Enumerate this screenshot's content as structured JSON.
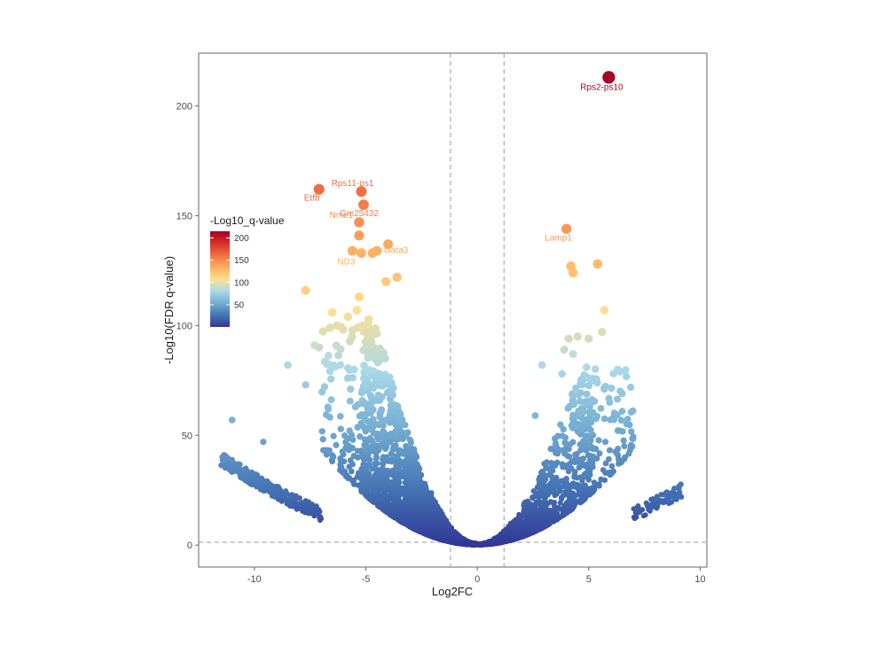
{
  "chart_data": {
    "type": "scatter",
    "title": "",
    "xlabel": "Log2FC",
    "ylabel": "-Log10(FDR q-value)",
    "xlim": [
      -12.5,
      10.3
    ],
    "ylim": [
      -10,
      224
    ],
    "x_ticks": [
      -10,
      -5,
      0,
      5,
      10
    ],
    "y_ticks": [
      0,
      50,
      100,
      150,
      200
    ],
    "grid": false,
    "thresholds": {
      "log2fc": [
        -1.2,
        1.2
      ],
      "neg_log10_q": 1.3
    },
    "colors": {
      "scale": [
        "#313695",
        "#4575b4",
        "#74add1",
        "#abd9e9",
        "#fee090",
        "#fdae61",
        "#f46d43",
        "#d73027",
        "#a50026"
      ],
      "threshold_line": "#999999",
      "axis": "#666666"
    },
    "legend": {
      "title": "-Log10_q-value",
      "placement": "left",
      "ticks": [
        50,
        100,
        150,
        200
      ],
      "range": [
        0,
        215
      ]
    },
    "labeled_points": [
      {
        "gene": "Rps2-ps10",
        "x": 5.9,
        "y": 213
      },
      {
        "gene": "Rps11-ps1",
        "x": -5.2,
        "y": 161
      },
      {
        "gene": "Etfb",
        "x": -7.1,
        "y": 162
      },
      {
        "gene": "Gm25432",
        "x": -5.1,
        "y": 155
      },
      {
        "gene": "Nme1",
        "x": -5.3,
        "y": 147
      },
      {
        "gene": "Lamp1",
        "x": 4.0,
        "y": 144
      },
      {
        "gene": "ND3",
        "x": -5.2,
        "y": 133
      },
      {
        "gene": "Gata3",
        "x": -4.0,
        "y": 137
      }
    ],
    "highlight_points": [
      {
        "x": -5.3,
        "y": 141
      },
      {
        "x": -5.6,
        "y": 134
      },
      {
        "x": -4.7,
        "y": 133
      },
      {
        "x": -4.5,
        "y": 134
      },
      {
        "x": -3.6,
        "y": 122
      },
      {
        "x": -4.1,
        "y": 120
      },
      {
        "x": -7.7,
        "y": 116
      },
      {
        "x": -5.3,
        "y": 113
      },
      {
        "x": -5.4,
        "y": 107
      },
      {
        "x": -5.8,
        "y": 104
      },
      {
        "x": -6.5,
        "y": 106
      },
      {
        "x": -6.3,
        "y": 100
      },
      {
        "x": -7.3,
        "y": 91
      },
      {
        "x": -7.1,
        "y": 90
      },
      {
        "x": -8.5,
        "y": 82
      },
      {
        "x": -7.7,
        "y": 73
      },
      {
        "x": -11.0,
        "y": 57
      },
      {
        "x": -9.6,
        "y": 47
      },
      {
        "x": 4.2,
        "y": 127
      },
      {
        "x": 4.3,
        "y": 124
      },
      {
        "x": 5.4,
        "y": 128
      },
      {
        "x": 5.7,
        "y": 107
      },
      {
        "x": 5.6,
        "y": 97
      },
      {
        "x": 5.0,
        "y": 94
      },
      {
        "x": 4.1,
        "y": 94
      },
      {
        "x": 4.5,
        "y": 95
      },
      {
        "x": 3.9,
        "y": 89
      },
      {
        "x": 4.3,
        "y": 87
      },
      {
        "x": 2.9,
        "y": 82
      },
      {
        "x": 6.3,
        "y": 80
      },
      {
        "x": 3.8,
        "y": 78
      },
      {
        "x": 4.9,
        "y": 81
      },
      {
        "x": 6.5,
        "y": 69
      },
      {
        "x": 5.7,
        "y": 71
      },
      {
        "x": 6.1,
        "y": 58
      },
      {
        "x": 2.6,
        "y": 59
      },
      {
        "x": 4.7,
        "y": 73
      }
    ],
    "bulk_distribution": {
      "n_left": 2900,
      "n_right": 1500,
      "left_x_range": [
        -11.6,
        -0.05
      ],
      "right_x_range": [
        0.05,
        9.3
      ],
      "y_range": [
        0,
        105
      ]
    }
  }
}
